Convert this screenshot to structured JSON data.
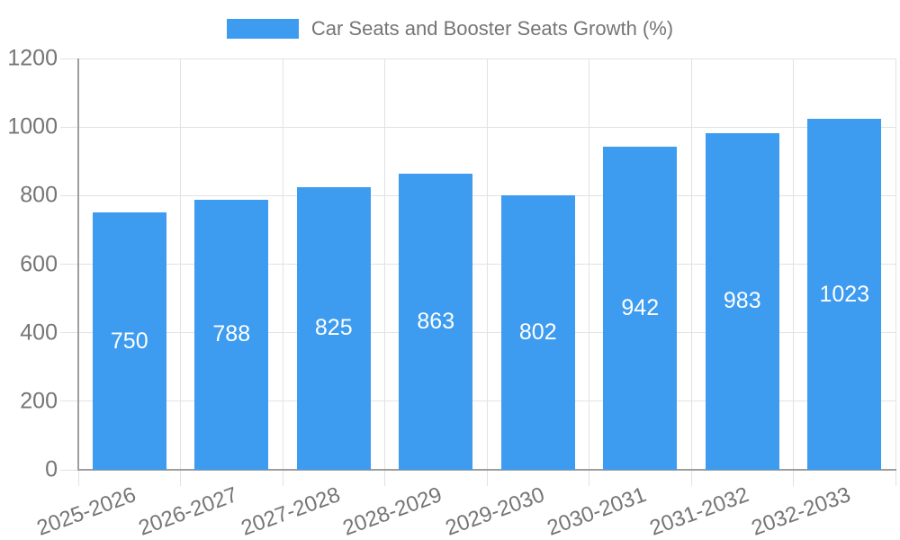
{
  "chart_data": {
    "type": "bar",
    "title": "Car Seats and Booster Seats Growth (%)",
    "categories": [
      "2025-2026",
      "2026-2027",
      "2027-2028",
      "2028-2029",
      "2029-2030",
      "2030-2031",
      "2031-2032",
      "2032-2033"
    ],
    "values": [
      750,
      788,
      825,
      863,
      802,
      942,
      983,
      1023
    ],
    "value_labels": [
      "750",
      "788",
      "825",
      "863",
      "802",
      "942",
      "983",
      "1023"
    ],
    "xlabel": "",
    "ylabel": "",
    "ylim": [
      0,
      1200
    ],
    "yticks": [
      0,
      200,
      400,
      600,
      800,
      1000,
      1200
    ],
    "ytick_labels": [
      "0",
      "200",
      "400",
      "600",
      "800",
      "1000",
      "1200"
    ],
    "grid": true,
    "legend_position": "top-center",
    "value_label_position": "inside-center",
    "colors": {
      "bar": "#3D9BF0",
      "grid_line": "#e2e2e2",
      "axis_line": "#9e9e9e",
      "tick_text": "#757575",
      "value_label": "#ffffff",
      "background": "#ffffff"
    }
  }
}
